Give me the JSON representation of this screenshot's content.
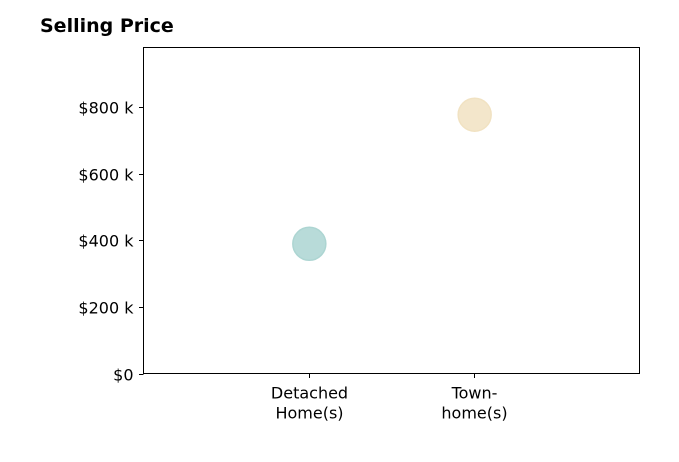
{
  "chart_data": {
    "type": "scatter",
    "title": "Selling Price",
    "xlabel": "",
    "ylabel": "",
    "categories": [
      {
        "lines": [
          "Detached",
          "Home(s)"
        ]
      },
      {
        "lines": [
          "Town-",
          "home(s)"
        ]
      }
    ],
    "values": [
      390000,
      778000
    ],
    "point_colors": [
      "#b2dcd9",
      "#f8e9c8"
    ],
    "ylim": [
      0,
      980000
    ],
    "yticks": [
      {
        "value": 0,
        "label": "$0"
      },
      {
        "value": 200000,
        "label": "$200 k"
      },
      {
        "value": 400000,
        "label": "$400 k"
      },
      {
        "value": 600000,
        "label": "$600 k"
      },
      {
        "value": 800000,
        "label": "$800 k"
      }
    ],
    "grid": false,
    "legend": "none"
  }
}
